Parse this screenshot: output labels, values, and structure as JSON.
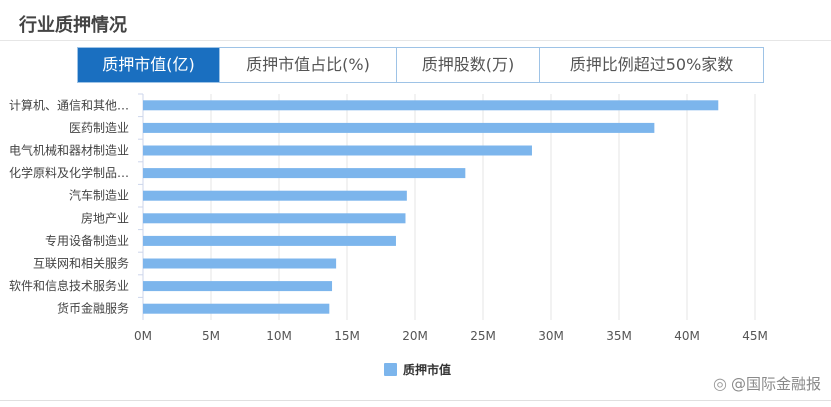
{
  "header": {
    "title": "行业质押情况"
  },
  "tabs": [
    {
      "label": "质押市值(亿)",
      "active": true
    },
    {
      "label": "质押市值占比(%)",
      "active": false
    },
    {
      "label": "质押股数(万)",
      "active": false
    },
    {
      "label": "质押比例超过50%家数",
      "active": false
    }
  ],
  "chart_data": {
    "type": "bar",
    "orientation": "horizontal",
    "categories": [
      "计算机、通信和其他…",
      "医药制造业",
      "电气机械和器材制造业",
      "化学原料及化学制品…",
      "汽车制造业",
      "房地产业",
      "专用设备制造业",
      "互联网和相关服务",
      "软件和信息技术服务业",
      "货币金融服务"
    ],
    "series": [
      {
        "name": "质押市值",
        "values": [
          42.3,
          37.6,
          28.6,
          23.7,
          19.4,
          19.3,
          18.6,
          14.2,
          13.9,
          13.7
        ]
      }
    ],
    "x_ticks": [
      "0M",
      "5M",
      "10M",
      "15M",
      "20M",
      "25M",
      "30M",
      "35M",
      "40M",
      "45M"
    ],
    "xlim": [
      0,
      45
    ],
    "grid": true,
    "legend_position": "bottom-center",
    "bar_color": "#7cb5ec"
  },
  "watermark": {
    "text": "@国际金融报",
    "icon": "weibo-icon"
  }
}
